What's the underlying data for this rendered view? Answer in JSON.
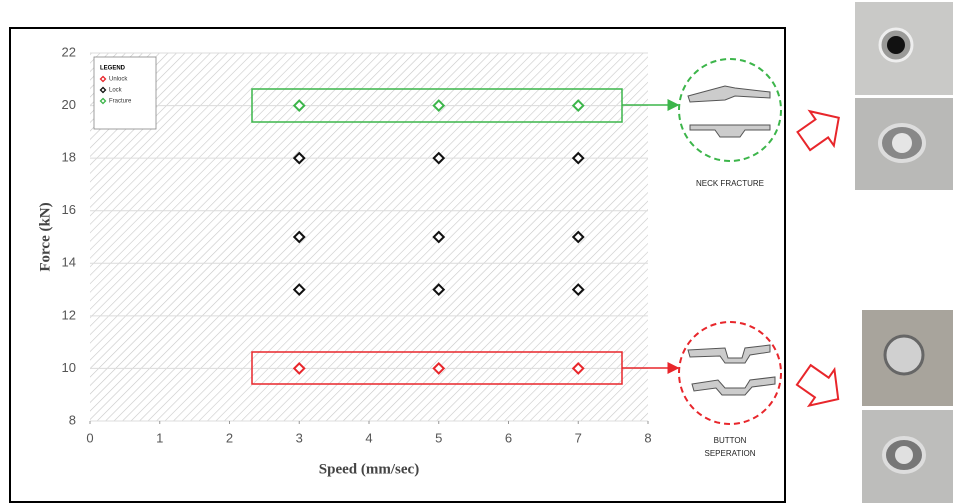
{
  "chart_data": {
    "type": "scatter",
    "x_label": "Speed (mm/sec)",
    "y_label": "Force (kN)",
    "xlim": [
      0,
      8
    ],
    "xticks": [
      0,
      1,
      2,
      3,
      4,
      5,
      6,
      7,
      8
    ],
    "ylim": [
      8,
      22
    ],
    "yticks": [
      8,
      10,
      12,
      14,
      16,
      18,
      20,
      22
    ],
    "grid": true,
    "legend_title": "LEGEND",
    "legend": "upper left",
    "series": [
      {
        "name": "Unlock",
        "color": "#e8262b",
        "x": [
          3,
          5,
          7
        ],
        "values": [
          10,
          10,
          10
        ]
      },
      {
        "name": "Lock",
        "color": "#111111",
        "x": [
          3,
          5,
          7,
          3,
          5,
          7,
          3,
          5,
          7
        ],
        "values": [
          18,
          18,
          18,
          15,
          15,
          15,
          13,
          13,
          13
        ]
      },
      {
        "name": "Fracture",
        "color": "#3cb54a",
        "x": [
          3,
          5,
          7
        ],
        "values": [
          20,
          20,
          20
        ]
      }
    ],
    "annotations": [
      "NECK FRACTURE",
      "BUTTON SEPERATION"
    ]
  }
}
